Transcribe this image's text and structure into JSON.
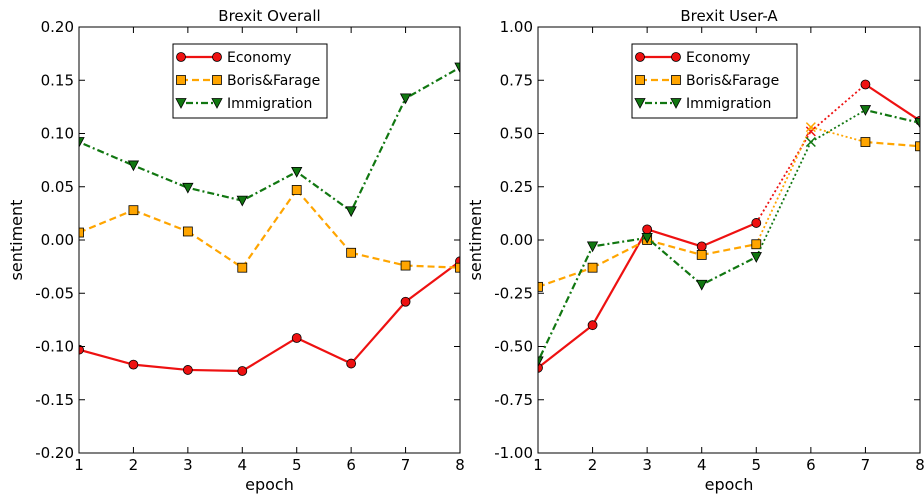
{
  "chart_data": [
    {
      "type": "line",
      "title": "Brexit Overall",
      "xlabel": "epoch",
      "ylabel": "sentiment",
      "xlim": [
        1,
        8
      ],
      "ylim": [
        -0.2,
        0.2
      ],
      "x": [
        1,
        2,
        3,
        4,
        5,
        6,
        7,
        8
      ],
      "xticks": [
        "1",
        "2",
        "3",
        "4",
        "5",
        "6",
        "7",
        "8"
      ],
      "yticks": [
        "0.20",
        "0.15",
        "0.10",
        "0.05",
        "0.00",
        "-0.05",
        "-0.10",
        "-0.15",
        "-0.20"
      ],
      "ytick_values": [
        0.2,
        0.15,
        0.1,
        0.05,
        0.0,
        -0.05,
        -0.1,
        -0.15,
        -0.2
      ],
      "grid": false,
      "legend": "upper-center",
      "series": [
        {
          "name": "Economy",
          "values": [
            -0.103,
            -0.117,
            -0.122,
            -0.123,
            -0.092,
            -0.116,
            -0.058,
            -0.02
          ],
          "color": "#ee1111",
          "style": "solid",
          "marker": "circle"
        },
        {
          "name": "Boris&Farage",
          "values": [
            0.007,
            0.028,
            0.008,
            -0.026,
            0.047,
            -0.012,
            -0.024,
            -0.026
          ],
          "color": "#ffa500",
          "style": "dashed",
          "marker": "square"
        },
        {
          "name": "Immigration",
          "values": [
            0.092,
            0.07,
            0.049,
            0.037,
            0.064,
            0.027,
            0.133,
            0.162
          ],
          "color": "#117711",
          "style": "dashdot",
          "marker": "triangle-down"
        }
      ]
    },
    {
      "type": "line",
      "title": "Brexit User-A",
      "xlabel": "epoch",
      "ylabel": "sentiment",
      "xlim": [
        1,
        8
      ],
      "ylim": [
        -1.0,
        1.0
      ],
      "x": [
        1,
        2,
        3,
        4,
        5,
        6,
        7,
        8
      ],
      "xticks": [
        "1",
        "2",
        "3",
        "4",
        "5",
        "6",
        "7",
        "8"
      ],
      "yticks": [
        "1.00",
        "0.75",
        "0.50",
        "0.25",
        "0.00",
        "-0.25",
        "-0.50",
        "-0.75",
        "-1.00"
      ],
      "ytick_values": [
        1.0,
        0.75,
        0.5,
        0.25,
        0.0,
        -0.25,
        -0.5,
        -0.75,
        -1.0
      ],
      "grid": false,
      "legend": "upper-center",
      "missing_epoch_marker": "x",
      "series": [
        {
          "name": "Economy",
          "values": [
            -0.6,
            -0.4,
            0.05,
            -0.03,
            0.08,
            0.51,
            0.73,
            0.56
          ],
          "missing": [
            6
          ],
          "color": "#ee1111",
          "style": "solid",
          "marker": "circle"
        },
        {
          "name": "Boris&Farage",
          "values": [
            -0.22,
            -0.13,
            0.0,
            -0.07,
            -0.02,
            0.53,
            0.46,
            0.44
          ],
          "missing": [
            6
          ],
          "color": "#ffa500",
          "style": "dashed",
          "marker": "square"
        },
        {
          "name": "Immigration",
          "values": [
            -0.57,
            -0.03,
            0.01,
            -0.21,
            -0.08,
            0.46,
            0.61,
            0.55
          ],
          "missing": [
            6
          ],
          "color": "#117711",
          "style": "dashdot",
          "marker": "triangle-down"
        }
      ]
    }
  ]
}
